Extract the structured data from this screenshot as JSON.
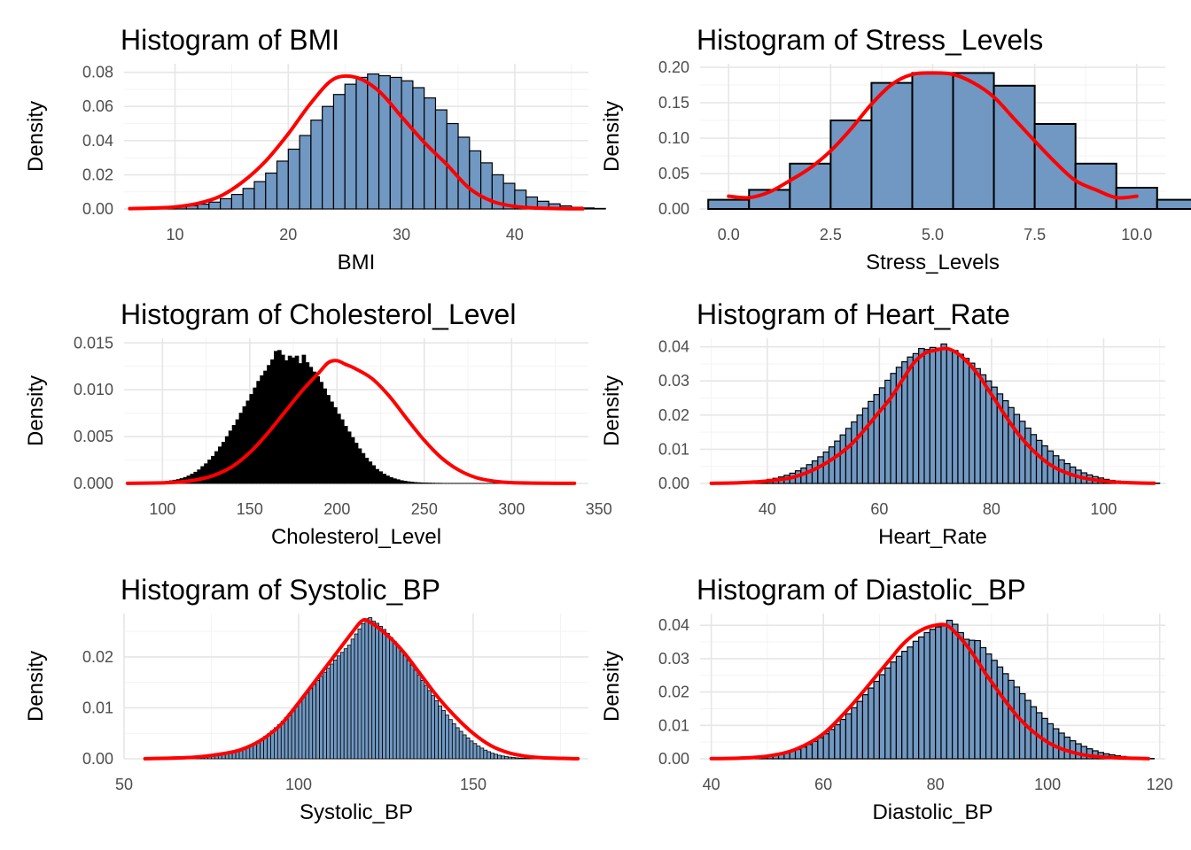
{
  "chart_data": [
    {
      "type": "histogram",
      "title": "Histogram of BMI",
      "xlabel": "BMI",
      "ylabel": "Density",
      "xlim": [
        5.5,
        46.5
      ],
      "ylim": [
        0,
        0.085
      ],
      "xticks": [
        10,
        20,
        30,
        40
      ],
      "xtick_labels": [
        "10",
        "20",
        "30",
        "40"
      ],
      "yticks": [
        0,
        0.02,
        0.04,
        0.06,
        0.08
      ],
      "ytick_labels": [
        "0.00",
        "0.02",
        "0.04",
        "0.06",
        "0.08"
      ],
      "bins": {
        "start": 6,
        "width": 1,
        "density": [
          0.0002,
          0.0003,
          0.0005,
          0.0008,
          0.0012,
          0.0019,
          0.0028,
          0.004,
          0.006,
          0.0085,
          0.012,
          0.016,
          0.021,
          0.028,
          0.035,
          0.043,
          0.052,
          0.06,
          0.067,
          0.073,
          0.077,
          0.079,
          0.078,
          0.077,
          0.075,
          0.071,
          0.065,
          0.058,
          0.05,
          0.042,
          0.034,
          0.027,
          0.02,
          0.015,
          0.011,
          0.007,
          0.0045,
          0.003,
          0.0018,
          0.001,
          0.0006,
          0.0003
        ]
      },
      "curve": {
        "x": [
          6,
          8,
          10,
          12,
          14,
          16,
          18,
          20,
          22,
          24,
          26,
          28,
          30,
          32,
          34,
          36,
          38,
          40,
          42,
          44,
          46
        ],
        "y": [
          0.0002,
          0.0005,
          0.0012,
          0.0032,
          0.0075,
          0.016,
          0.028,
          0.044,
          0.062,
          0.076,
          0.077,
          0.069,
          0.054,
          0.039,
          0.026,
          0.012,
          0.0045,
          0.0015,
          0.0005,
          0.0002,
          0.0001
        ]
      },
      "bar_fill": "#7098c2",
      "bar_stroke": "#000000",
      "line_color": "#ff0000"
    },
    {
      "type": "histogram",
      "title": "Histogram of Stress_Levels",
      "xlabel": "Stress_Levels",
      "ylabel": "Density",
      "xlim": [
        -0.7,
        10.7
      ],
      "ylim": [
        0,
        0.205
      ],
      "xticks": [
        0,
        2.5,
        5,
        7.5,
        10
      ],
      "xtick_labels": [
        "0.0",
        "2.5",
        "5.0",
        "7.5",
        "10.0"
      ],
      "yticks": [
        0,
        0.05,
        0.1,
        0.15,
        0.2
      ],
      "ytick_labels": [
        "0.00",
        "0.05",
        "0.10",
        "0.15",
        "0.20"
      ],
      "bins": {
        "start": -0.5,
        "width": 1,
        "density": [
          0.013,
          0.027,
          0.064,
          0.125,
          0.178,
          0.192,
          0.192,
          0.174,
          0.12,
          0.064,
          0.03,
          0.013
        ]
      },
      "curve": {
        "x": [
          0,
          0.5,
          1,
          1.5,
          2,
          2.5,
          3,
          3.5,
          4,
          4.5,
          5,
          5.5,
          6,
          6.5,
          7,
          7.5,
          8,
          8.5,
          9,
          9.5,
          10
        ],
        "y": [
          0.018,
          0.016,
          0.024,
          0.04,
          0.058,
          0.082,
          0.113,
          0.148,
          0.176,
          0.19,
          0.192,
          0.19,
          0.178,
          0.158,
          0.127,
          0.096,
          0.066,
          0.04,
          0.027,
          0.016,
          0.018
        ]
      },
      "bar_fill": "#7098c2",
      "bar_stroke": "#000000",
      "line_color": "#ff0000"
    },
    {
      "type": "histogram",
      "title": "Histogram of Cholesterol_Level",
      "xlabel": "Cholesterol_Level",
      "ylabel": "Density",
      "xlim": [
        78,
        344
      ],
      "ylim": [
        0,
        0.0155
      ],
      "xticks": [
        100,
        150,
        200,
        250,
        300,
        350
      ],
      "xtick_labels": [
        "100",
        "150",
        "200",
        "250",
        "300",
        "350"
      ],
      "yticks": [
        0,
        0.005,
        0.01,
        0.015
      ],
      "ytick_labels": [
        "0.000",
        "0.005",
        "0.010",
        "0.015"
      ],
      "bins": {
        "start": 82,
        "width": 2,
        "density": [
          1e-05,
          2e-05,
          3e-05,
          4e-05,
          6e-05,
          8e-05,
          0.0001,
          0.00013,
          0.00016,
          0.0002,
          0.00024,
          0.00029,
          0.00035,
          0.00042,
          0.00052,
          0.00064,
          0.0008,
          0.001,
          0.0012,
          0.00145,
          0.0018,
          0.0021,
          0.0025,
          0.0029,
          0.0034,
          0.0039,
          0.0044,
          0.005,
          0.0056,
          0.0062,
          0.0068,
          0.0075,
          0.0082,
          0.0088,
          0.0095,
          0.0102,
          0.0109,
          0.0115,
          0.012,
          0.0126,
          0.0132,
          0.0141,
          0.0142,
          0.0137,
          0.0131,
          0.0136,
          0.0134,
          0.0136,
          0.0128,
          0.0137,
          0.0129,
          0.0124,
          0.0119,
          0.0114,
          0.0108,
          0.0101,
          0.0094,
          0.0087,
          0.0081,
          0.0074,
          0.0068,
          0.0061,
          0.0055,
          0.0049,
          0.0043,
          0.0037,
          0.0032,
          0.0027,
          0.0023,
          0.0019,
          0.0015,
          0.00125,
          0.001,
          0.0008,
          0.00063,
          0.0005,
          0.0004,
          0.0003,
          0.00024,
          0.00018,
          0.00014,
          0.0001,
          8e-05,
          6e-05,
          5e-05,
          4e-05,
          3e-05,
          2e-05,
          2e-05,
          1e-05,
          1e-05,
          1e-05,
          1e-05,
          1e-05,
          1e-05,
          1e-05,
          1e-05,
          1e-05,
          1e-05,
          1e-05,
          1e-05,
          1e-05,
          1e-05,
          1e-05,
          1e-05,
          1e-05,
          1e-05,
          1e-05,
          1e-05,
          1e-05,
          1e-05,
          1e-05,
          1e-05,
          1e-05,
          1e-05,
          1e-05,
          1e-05,
          1e-05,
          1e-05,
          1e-05,
          1e-05,
          1e-05,
          1e-05,
          1e-05,
          1e-05,
          1e-05
        ]
      },
      "curve": {
        "x": [
          80,
          100,
          110,
          120,
          130,
          140,
          150,
          160,
          170,
          180,
          190,
          195,
          200,
          205,
          210,
          220,
          230,
          240,
          250,
          260,
          270,
          280,
          290,
          300,
          320,
          336
        ],
        "y": [
          1e-05,
          6e-05,
          0.00015,
          0.0004,
          0.0009,
          0.0018,
          0.0033,
          0.0053,
          0.0076,
          0.0099,
          0.0119,
          0.0129,
          0.0131,
          0.0127,
          0.0123,
          0.0112,
          0.0093,
          0.0069,
          0.0046,
          0.0027,
          0.0014,
          0.0006,
          0.00024,
          8e-05,
          2e-05,
          1e-05
        ]
      },
      "bar_fill": "#000000",
      "bar_stroke": "#000000",
      "line_color": "#ff0000"
    },
    {
      "type": "histogram",
      "title": "Histogram of Heart_Rate",
      "xlabel": "Heart_Rate",
      "ylabel": "Density",
      "xlim": [
        28,
        111
      ],
      "ylim": [
        0,
        0.0425
      ],
      "xticks": [
        40,
        60,
        80,
        100
      ],
      "xtick_labels": [
        "40",
        "60",
        "80",
        "100"
      ],
      "yticks": [
        0,
        0.01,
        0.02,
        0.03,
        0.04
      ],
      "ytick_labels": [
        "0.00",
        "0.01",
        "0.02",
        "0.03",
        "0.04"
      ],
      "bins": {
        "start": 30,
        "width": 1,
        "density": [
          0.0001,
          0.0001,
          0.0001,
          0.0002,
          0.0002,
          0.0003,
          0.0004,
          0.0005,
          0.0007,
          0.0009,
          0.0012,
          0.0015,
          0.0019,
          0.0024,
          0.003,
          0.0037,
          0.0045,
          0.0055,
          0.0066,
          0.0078,
          0.0092,
          0.0107,
          0.0124,
          0.0142,
          0.0161,
          0.018,
          0.02,
          0.022,
          0.024,
          0.026,
          0.028,
          0.0302,
          0.0322,
          0.034,
          0.0356,
          0.037,
          0.038,
          0.0395,
          0.0392,
          0.0398,
          0.0396,
          0.0408,
          0.0392,
          0.0389,
          0.0378,
          0.0366,
          0.0352,
          0.0336,
          0.0318,
          0.03,
          0.0282,
          0.0262,
          0.0242,
          0.0222,
          0.0202,
          0.0182,
          0.0162,
          0.0143,
          0.0126,
          0.011,
          0.0095,
          0.0081,
          0.0069,
          0.0058,
          0.0048,
          0.0039,
          0.0031,
          0.0025,
          0.002,
          0.0016,
          0.0012,
          0.0009,
          0.0007,
          0.0005,
          0.0004,
          0.0003,
          0.0002,
          0.0002,
          0.0001,
          0.0001
        ]
      },
      "curve": {
        "x": [
          30,
          35,
          40,
          45,
          50,
          55,
          60,
          62,
          64,
          66,
          68,
          70,
          72,
          74,
          76,
          78,
          80,
          85,
          90,
          95,
          100,
          105,
          109
        ],
        "y": [
          3e-05,
          0.0002,
          0.0007,
          0.002,
          0.0055,
          0.0115,
          0.021,
          0.025,
          0.03,
          0.035,
          0.038,
          0.039,
          0.0395,
          0.038,
          0.035,
          0.031,
          0.026,
          0.014,
          0.006,
          0.0022,
          0.0007,
          0.0002,
          5e-05
        ]
      },
      "bar_fill": "#7098c2",
      "bar_stroke": "#000000",
      "line_color": "#ff0000"
    },
    {
      "type": "histogram",
      "title": "Histogram of Systolic_BP",
      "xlabel": "Systolic_BP",
      "ylabel": "Density",
      "xlim": [
        50,
        183
      ],
      "ylim": [
        0,
        0.0285
      ],
      "xticks": [
        50,
        100,
        150
      ],
      "xtick_labels": [
        "50",
        "100",
        "150"
      ],
      "yticks": [
        0,
        0.01,
        0.02
      ],
      "ytick_labels": [
        "0.00",
        "0.01",
        "0.02"
      ],
      "bins": {
        "start": 56,
        "width": 1,
        "density": [
          2e-05,
          2e-05,
          3e-05,
          3e-05,
          4e-05,
          5e-05,
          6e-05,
          7e-05,
          8e-05,
          0.0001,
          0.00012,
          0.00014,
          0.00017,
          0.0002,
          0.00024,
          0.00028,
          0.00033,
          0.00039,
          0.00046,
          0.00054,
          0.00064,
          0.00075,
          0.00088,
          0.001,
          0.0012,
          0.0014,
          0.0016,
          0.0018,
          0.0021,
          0.0024,
          0.0027,
          0.0031,
          0.0035,
          0.0039,
          0.0044,
          0.0049,
          0.0055,
          0.0061,
          0.0067,
          0.0074,
          0.0081,
          0.0089,
          0.0097,
          0.0105,
          0.0113,
          0.0122,
          0.013,
          0.0138,
          0.0146,
          0.0154,
          0.0162,
          0.017,
          0.0178,
          0.0186,
          0.0194,
          0.0202,
          0.0209,
          0.0216,
          0.0223,
          0.0235,
          0.0245,
          0.0255,
          0.0265,
          0.0275,
          0.0277,
          0.027,
          0.0266,
          0.026,
          0.0254,
          0.0246,
          0.0238,
          0.023,
          0.0221,
          0.0212,
          0.0203,
          0.0193,
          0.0184,
          0.0174,
          0.0164,
          0.0154,
          0.0144,
          0.0134,
          0.0124,
          0.0114,
          0.0104,
          0.0095,
          0.0086,
          0.0077,
          0.0069,
          0.0061,
          0.0054,
          0.0047,
          0.0041,
          0.0035,
          0.003,
          0.0025,
          0.0021,
          0.0017,
          0.0014,
          0.0011,
          0.0009,
          0.0007,
          0.00055,
          0.00043,
          0.00033,
          0.00025,
          0.00019,
          0.00014,
          0.0001,
          8e-05,
          6e-05,
          5e-05,
          4e-05,
          3e-05,
          2e-05,
          2e-05,
          2e-05,
          1e-05,
          1e-05,
          1e-05,
          1e-05,
          1e-05,
          1e-05,
          1e-05
        ]
      },
      "curve": {
        "x": [
          56,
          70,
          80,
          85,
          90,
          95,
          100,
          105,
          110,
          115,
          118,
          120,
          125,
          130,
          135,
          140,
          145,
          150,
          155,
          160,
          165,
          170,
          180
        ],
        "y": [
          2e-05,
          0.0003,
          0.0012,
          0.0022,
          0.004,
          0.0068,
          0.011,
          0.0155,
          0.02,
          0.0245,
          0.027,
          0.027,
          0.0245,
          0.021,
          0.0165,
          0.012,
          0.0082,
          0.005,
          0.0026,
          0.0012,
          0.0005,
          0.0002,
          2e-05
        ]
      },
      "bar_fill": "#7098c2",
      "bar_stroke": "#000000",
      "line_color": "#ff0000"
    },
    {
      "type": "histogram",
      "title": "Histogram of Diastolic_BP",
      "xlabel": "Diastolic_BP",
      "ylabel": "Density",
      "xlim": [
        38,
        121
      ],
      "ylim": [
        0,
        0.0435
      ],
      "xticks": [
        40,
        60,
        80,
        100,
        120
      ],
      "xtick_labels": [
        "40",
        "60",
        "80",
        "100",
        "120"
      ],
      "yticks": [
        0,
        0.01,
        0.02,
        0.03,
        0.04
      ],
      "ytick_labels": [
        "0.00",
        "0.01",
        "0.02",
        "0.03",
        "0.04"
      ],
      "bins": {
        "start": 40,
        "width": 1,
        "density": [
          0.0001,
          0.0001,
          0.0001,
          0.0001,
          0.0002,
          0.0002,
          0.0003,
          0.0004,
          0.0005,
          0.0007,
          0.0009,
          0.0011,
          0.0014,
          0.0018,
          0.0023,
          0.0028,
          0.0035,
          0.0043,
          0.0052,
          0.0063,
          0.0075,
          0.0088,
          0.0102,
          0.0118,
          0.0135,
          0.0153,
          0.0172,
          0.0192,
          0.0212,
          0.0232,
          0.0252,
          0.0272,
          0.029,
          0.0307,
          0.0322,
          0.0335,
          0.0352,
          0.0365,
          0.0378,
          0.0388,
          0.0395,
          0.0398,
          0.0415,
          0.0403,
          0.0378,
          0.0358,
          0.0355,
          0.0354,
          0.0333,
          0.0314,
          0.0295,
          0.0275,
          0.0255,
          0.0235,
          0.0215,
          0.0195,
          0.0175,
          0.0156,
          0.0138,
          0.0121,
          0.0105,
          0.009,
          0.0077,
          0.0065,
          0.0054,
          0.0045,
          0.0037,
          0.003,
          0.0024,
          0.0019,
          0.0015,
          0.0012,
          0.0009,
          0.0007,
          0.0005,
          0.0004,
          0.0003,
          0.0002,
          0.0001
        ]
      },
      "curve": {
        "x": [
          40,
          45,
          50,
          55,
          60,
          65,
          70,
          72,
          74,
          76,
          78,
          80,
          82,
          84,
          86,
          88,
          90,
          95,
          100,
          105,
          110,
          118
        ],
        "y": [
          5e-05,
          0.0002,
          0.0008,
          0.0028,
          0.0075,
          0.016,
          0.026,
          0.03,
          0.034,
          0.037,
          0.039,
          0.04,
          0.04,
          0.037,
          0.033,
          0.028,
          0.023,
          0.012,
          0.005,
          0.0017,
          0.0005,
          5e-05
        ]
      },
      "bar_fill": "#7098c2",
      "bar_stroke": "#000000",
      "line_color": "#ff0000"
    }
  ]
}
